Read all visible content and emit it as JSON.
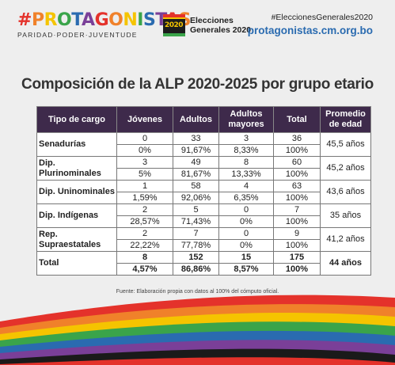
{
  "header": {
    "brand_title": "#PROTAGONISTAS",
    "brand_subtitle": "PARIDAD·PODER·JUVENTUDE",
    "elections_line1": "Elecciones",
    "elections_line2": "Generales 2020",
    "elections_badge": "2020",
    "hashtag": "#EleccionesGenerales2020",
    "url": "protagonistas.cm.org.bo"
  },
  "title": "Composición de la ALP 2020-2025 por grupo etario",
  "table": {
    "headers": [
      "Tipo de cargo",
      "Jóvenes",
      "Adultos",
      "Adultos mayores",
      "Total",
      "Promedio de edad"
    ],
    "rows": [
      {
        "type": "Senadurías",
        "counts": [
          "0",
          "33",
          "3",
          "36"
        ],
        "pcts": [
          "0%",
          "91,67%",
          "8,33%",
          "100%"
        ],
        "avg": "45,5 años"
      },
      {
        "type": "Dip. Plurinominales",
        "counts": [
          "3",
          "49",
          "8",
          "60"
        ],
        "pcts": [
          "5%",
          "81,67%",
          "13,33%",
          "100%"
        ],
        "avg": "45,2 años"
      },
      {
        "type": "Dip. Uninominales",
        "counts": [
          "1",
          "58",
          "4",
          "63"
        ],
        "pcts": [
          "1,59%",
          "92,06%",
          "6,35%",
          "100%"
        ],
        "avg": "43,6 años"
      },
      {
        "type": "Dip. Indígenas",
        "counts": [
          "2",
          "5",
          "0",
          "7"
        ],
        "pcts": [
          "28,57%",
          "71,43%",
          "0%",
          "100%"
        ],
        "avg": "35 años"
      },
      {
        "type": "Rep. Supraestatales",
        "counts": [
          "2",
          "7",
          "0",
          "9"
        ],
        "pcts": [
          "22,22%",
          "77,78%",
          "0%",
          "100%"
        ],
        "avg": "41,2 años"
      },
      {
        "type": "Total",
        "counts": [
          "8",
          "152",
          "15",
          "175"
        ],
        "pcts": [
          "4,57%",
          "86,86%",
          "8,57%",
          "100%"
        ],
        "avg": "44 años"
      }
    ]
  },
  "source": "Fuente: Elaboración propia con datos al 100% del cómputo oficial.",
  "colors": {
    "header_bg": "#3e2a4b",
    "url": "#2a6bb0",
    "brand_letters": [
      "#e4322b",
      "#f0812a",
      "#f5c400",
      "#3aa44a",
      "#2a6bb0",
      "#7a3f98"
    ]
  }
}
